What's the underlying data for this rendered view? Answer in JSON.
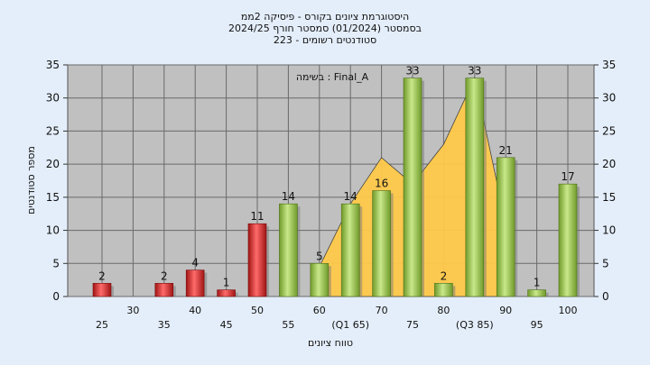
{
  "chart_data": {
    "type": "bar",
    "title_lines": [
      "היסטוגרמת ציונים בקורס - פיסיקה 2ממ",
      "בסמסטר  (01/2024)  סמסטר חורף 2024/25",
      "סטודנטים רשומים - 223"
    ],
    "annotation": "בשימה : Final_A",
    "xlabel": "טווח ציונים",
    "ylabel": "מספר סטודנטים",
    "ylim": [
      0,
      35
    ],
    "yticks": [
      0,
      5,
      10,
      15,
      20,
      25,
      30,
      35
    ],
    "grid": true,
    "categories": [
      25,
      30,
      35,
      40,
      45,
      50,
      55,
      60,
      65,
      70,
      75,
      80,
      85,
      90,
      95,
      100
    ],
    "x_tick_labels": [
      "25",
      "30",
      "35",
      "40",
      "45",
      "50",
      "55",
      "60",
      "(Q1 65)",
      "70",
      "75",
      "80",
      "(Q3 85)",
      "90",
      "95",
      "100"
    ],
    "values": [
      2,
      0,
      2,
      4,
      1,
      11,
      14,
      5,
      14,
      16,
      33,
      2,
      33,
      21,
      1,
      17
    ],
    "bar_colors": {
      "fail": "#dd2a2a",
      "pass": "#9cc24e"
    },
    "pass_threshold": 55,
    "area": {
      "color": "#ffc94a",
      "x": [
        60,
        65,
        70,
        75,
        80,
        85,
        90
      ],
      "values": [
        4.5,
        14,
        21,
        17,
        23,
        33,
        11
      ]
    }
  }
}
